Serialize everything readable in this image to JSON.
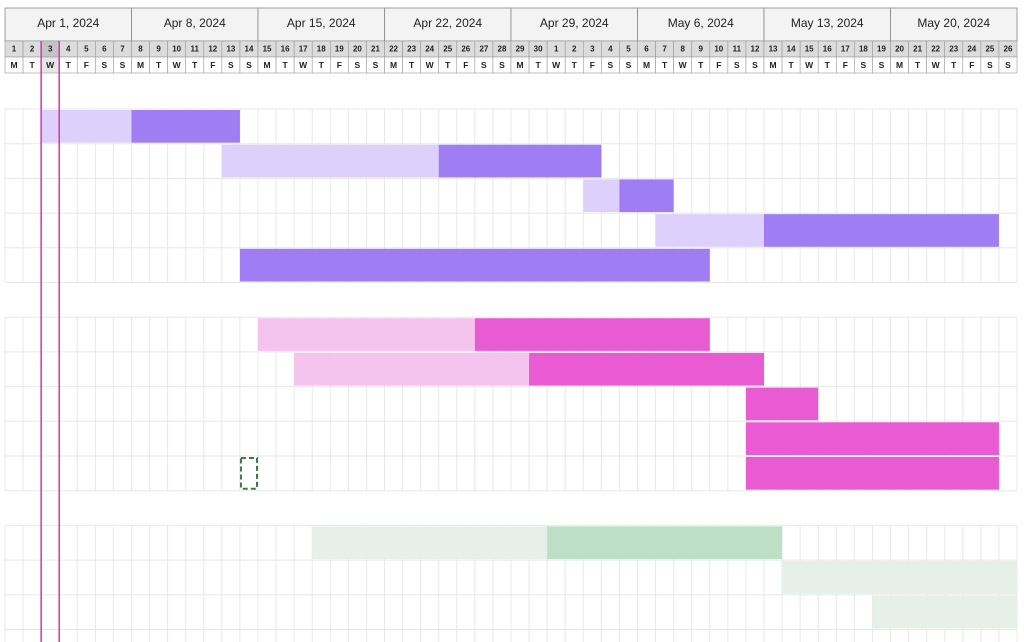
{
  "timeline": {
    "weeks": [
      "Apr 1, 2024",
      "Apr 8, 2024",
      "Apr 15, 2024",
      "Apr 22, 2024",
      "Apr 29, 2024",
      "May 6, 2024",
      "May 13, 2024",
      "May 20, 2024"
    ],
    "days": [
      1,
      2,
      3,
      4,
      5,
      6,
      7,
      8,
      9,
      10,
      11,
      12,
      13,
      14,
      15,
      16,
      17,
      18,
      19,
      20,
      21,
      22,
      23,
      24,
      25,
      26,
      27,
      28,
      29,
      30,
      1,
      2,
      3,
      4,
      5,
      6,
      7,
      8,
      9,
      10,
      11,
      12,
      13,
      14,
      15,
      16,
      17,
      18,
      19,
      20,
      21,
      22,
      23,
      24,
      25,
      26
    ],
    "weekdays": [
      "M",
      "T",
      "W",
      "T",
      "F",
      "S",
      "S",
      "M",
      "T",
      "W",
      "T",
      "F",
      "S",
      "S",
      "M",
      "T",
      "W",
      "T",
      "F",
      "S",
      "S",
      "M",
      "T",
      "W",
      "T",
      "F",
      "S",
      "S",
      "M",
      "T",
      "W",
      "T",
      "F",
      "S",
      "S",
      "M",
      "T",
      "W",
      "T",
      "F",
      "S",
      "S",
      "M",
      "T",
      "W",
      "T",
      "F",
      "S",
      "S",
      "M",
      "T",
      "W",
      "T",
      "F",
      "S",
      "S"
    ],
    "today": "Apr 3, 2024",
    "today_color": "#d633b8",
    "selected_cell": {
      "date": "Apr 14, 2024",
      "group": 1,
      "row": 4,
      "color": "#3a7a45"
    }
  },
  "groups": [
    {
      "light_color": "#ddd0fb",
      "dark_color": "#9f7ef3",
      "tasks": [
        {
          "start": "Apr 3, 2024",
          "dark_start": "Apr 8, 2024",
          "end": "Apr 13, 2024"
        },
        {
          "start": "Apr 13, 2024",
          "dark_start": "Apr 25, 2024",
          "end": "May 3, 2024"
        },
        {
          "start": "May 3, 2024",
          "dark_start": "May 5, 2024",
          "end": "May 7, 2024"
        },
        {
          "start": "May 7, 2024",
          "dark_start": "May 13, 2024",
          "end": "May 25, 2024"
        },
        {
          "start": "Apr 14, 2024",
          "dark_start": "Apr 14, 2024",
          "end": "May 9, 2024"
        }
      ]
    },
    {
      "light_color": "#f4c3ee",
      "dark_color": "#e95bd3",
      "tasks": [
        {
          "start": "Apr 15, 2024",
          "dark_start": "Apr 27, 2024",
          "end": "May 9, 2024"
        },
        {
          "start": "Apr 17, 2024",
          "dark_start": "Apr 30, 2024",
          "end": "May 12, 2024"
        },
        {
          "start": "May 12, 2024",
          "dark_start": "May 12, 2024",
          "end": "May 15, 2024"
        },
        {
          "start": "May 12, 2024",
          "dark_start": "May 12, 2024",
          "end": "May 25, 2024"
        },
        {
          "start": "May 12, 2024",
          "dark_start": "May 12, 2024",
          "end": "May 25, 2024"
        }
      ]
    },
    {
      "light_color": "#e6f0e8",
      "dark_color": "#bcdfc6",
      "tasks": [
        {
          "start": "Apr 18, 2024",
          "dark_start": "May 1, 2024",
          "end": "May 13, 2024"
        },
        {
          "start": "May 14, 2024",
          "dark_start": null,
          "end": "May 26, 2024"
        },
        {
          "start": "May 19, 2024",
          "dark_start": null,
          "end": "May 26, 2024"
        }
      ]
    }
  ]
}
